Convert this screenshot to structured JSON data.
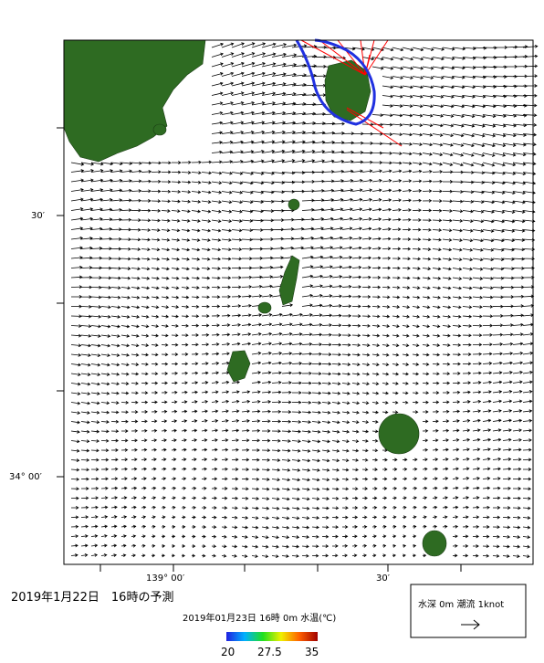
{
  "map": {
    "lat_labels": [
      "30′",
      "34° 00′"
    ],
    "lon_labels": [
      "139° 00′",
      "30′"
    ],
    "title": "2019年1月22日　16時の予測",
    "colorbar": {
      "title": "2019年01月23日 16時 0m 水温(℃)",
      "labels": [
        "20",
        "27.5",
        "35"
      ]
    },
    "legend": "水深 0m 潮流 1knot"
  }
}
